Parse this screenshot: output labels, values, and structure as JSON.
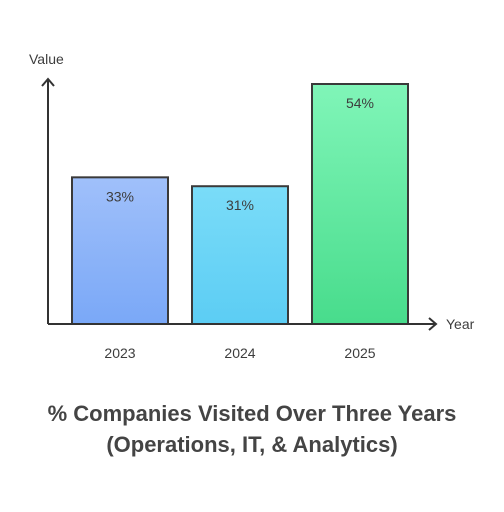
{
  "chart_data": {
    "type": "bar",
    "title": "% Companies Visited Over Three Years (Operations, IT, & Analytics)",
    "xlabel": "Year",
    "ylabel": "Value",
    "categories": [
      "2023",
      "2024",
      "2025"
    ],
    "values": [
      33,
      31,
      54
    ],
    "value_labels": [
      "33%",
      "31%",
      "54%"
    ],
    "ylim": [
      0,
      54
    ],
    "grid": false,
    "bar_colors": [
      {
        "top": "#a0c0fa",
        "bottom": "#7aa8f7"
      },
      {
        "top": "#7adcf8",
        "bottom": "#5ccdf4"
      },
      {
        "top": "#80f5b8",
        "bottom": "#48dc8c"
      }
    ],
    "axis_color": "#333333",
    "bar_stroke": "#3a3a3a"
  }
}
